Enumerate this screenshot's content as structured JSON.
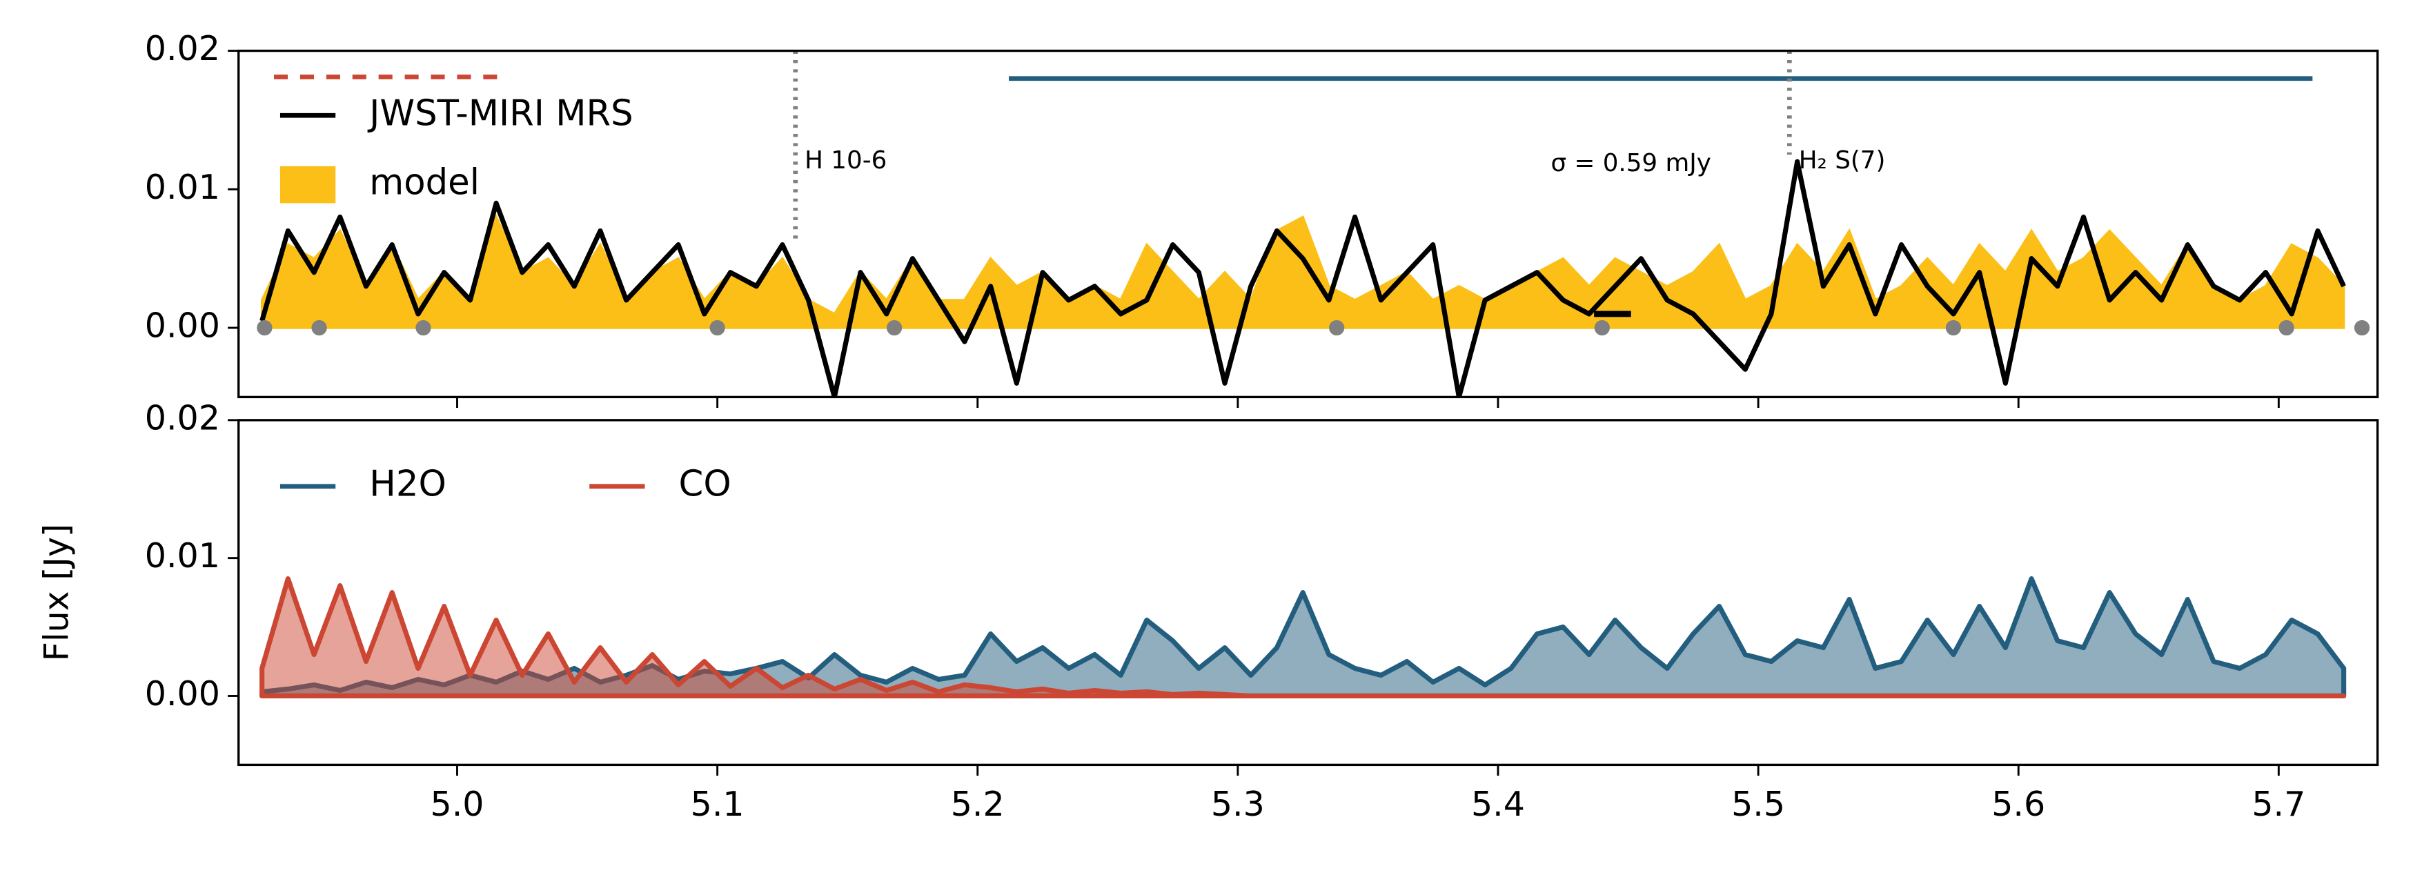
{
  "chart_data": [
    {
      "type": "line",
      "legend": "upper left",
      "x": [
        4.925,
        4.935,
        4.945,
        4.955,
        4.965,
        4.975,
        4.985,
        4.995,
        5.005,
        5.015,
        5.025,
        5.035,
        5.045,
        5.055,
        5.065,
        5.075,
        5.085,
        5.095,
        5.105,
        5.115,
        5.125,
        5.135,
        5.145,
        5.155,
        5.165,
        5.175,
        5.185,
        5.195,
        5.205,
        5.215,
        5.225,
        5.235,
        5.245,
        5.255,
        5.265,
        5.275,
        5.285,
        5.295,
        5.305,
        5.315,
        5.325,
        5.335,
        5.345,
        5.355,
        5.365,
        5.375,
        5.385,
        5.395,
        5.405,
        5.415,
        5.425,
        5.435,
        5.445,
        5.455,
        5.465,
        5.475,
        5.485,
        5.495,
        5.505,
        5.515,
        5.525,
        5.535,
        5.545,
        5.555,
        5.565,
        5.575,
        5.585,
        5.595,
        5.605,
        5.615,
        5.625,
        5.635,
        5.645,
        5.655,
        5.665,
        5.675,
        5.685,
        5.695,
        5.705,
        5.715,
        5.725
      ],
      "series": [
        {
          "name": "model",
          "color": "#fbbf17",
          "fill": true,
          "values": [
            0.002,
            0.006,
            0.005,
            0.007,
            0.003,
            0.006,
            0.002,
            0.004,
            0.002,
            0.008,
            0.004,
            0.005,
            0.003,
            0.006,
            0.002,
            0.004,
            0.005,
            0.002,
            0.004,
            0.003,
            0.005,
            0.002,
            0.001,
            0.004,
            0.002,
            0.005,
            0.002,
            0.002,
            0.005,
            0.003,
            0.004,
            0.002,
            0.003,
            0.002,
            0.006,
            0.004,
            0.002,
            0.004,
            0.002,
            0.007,
            0.008,
            0.003,
            0.002,
            0.003,
            0.004,
            0.002,
            0.003,
            0.002,
            0.003,
            0.004,
            0.005,
            0.003,
            0.005,
            0.004,
            0.003,
            0.004,
            0.006,
            0.002,
            0.003,
            0.006,
            0.004,
            0.007,
            0.002,
            0.003,
            0.005,
            0.003,
            0.006,
            0.004,
            0.007,
            0.004,
            0.005,
            0.007,
            0.005,
            0.003,
            0.006,
            0.003,
            0.002,
            0.003,
            0.006,
            0.005,
            0.003
          ]
        },
        {
          "name": "JWST-MIRI MRS",
          "color": "#000000",
          "fill": false,
          "values": [
            0.0005,
            0.007,
            0.004,
            0.008,
            0.003,
            0.006,
            0.001,
            0.004,
            0.002,
            0.009,
            0.004,
            0.006,
            0.003,
            0.007,
            0.002,
            0.004,
            0.006,
            0.001,
            0.004,
            0.003,
            0.006,
            0.002,
            -0.005,
            0.004,
            0.001,
            0.005,
            0.002,
            -0.001,
            0.003,
            -0.004,
            0.004,
            0.002,
            0.003,
            0.001,
            0.002,
            0.006,
            0.004,
            -0.004,
            0.003,
            0.007,
            0.005,
            0.002,
            0.008,
            0.002,
            0.004,
            0.006,
            -0.005,
            0.002,
            0.003,
            0.004,
            0.002,
            0.001,
            0.003,
            0.005,
            0.002,
            0.001,
            -0.001,
            -0.003,
            0.001,
            0.012,
            0.003,
            0.006,
            0.001,
            0.006,
            0.003,
            0.001,
            0.004,
            -0.004,
            0.005,
            0.003,
            0.008,
            0.002,
            0.004,
            0.002,
            0.006,
            0.003,
            0.002,
            0.004,
            0.001,
            0.007,
            0.003
          ]
        }
      ],
      "continuum": {
        "color": "#808080",
        "x": [
          4.926,
          4.947,
          4.987,
          5.1,
          5.168,
          5.338,
          5.44,
          5.575,
          5.703,
          5.732
        ],
        "values": [
          0,
          0,
          0,
          0,
          0,
          0,
          0,
          0,
          0,
          0
        ]
      },
      "range_line": {
        "color": "#235e7f",
        "x": [
          5.212,
          5.713
        ],
        "value": 0.018
      },
      "lines": [
        {
          "label": "H 10-6",
          "x": 5.13,
          "y_end": 0.006
        },
        {
          "label": "H₂ S(7)",
          "x": 5.512,
          "y_end": 0.0125
        }
      ],
      "noise": {
        "label": "σ = 0.59 mJy",
        "x": 5.444,
        "value": 0.001
      },
      "xlim": [
        4.916,
        5.738
      ],
      "ylim": [
        -0.005,
        0.02
      ],
      "yticks": [
        0.02,
        0.01,
        {
          "value": 0,
          "label": "0.00"
        }
      ]
    },
    {
      "type": "area",
      "legend": "upper left",
      "y_label": "Flux [Jy]",
      "x": [
        4.925,
        4.935,
        4.945,
        4.955,
        4.965,
        4.975,
        4.985,
        4.995,
        5.005,
        5.015,
        5.025,
        5.035,
        5.045,
        5.055,
        5.065,
        5.075,
        5.085,
        5.095,
        5.105,
        5.115,
        5.125,
        5.135,
        5.145,
        5.155,
        5.165,
        5.175,
        5.185,
        5.195,
        5.205,
        5.215,
        5.225,
        5.235,
        5.245,
        5.255,
        5.265,
        5.275,
        5.285,
        5.295,
        5.305,
        5.315,
        5.325,
        5.335,
        5.345,
        5.355,
        5.365,
        5.375,
        5.385,
        5.395,
        5.405,
        5.415,
        5.425,
        5.435,
        5.445,
        5.455,
        5.465,
        5.475,
        5.485,
        5.495,
        5.505,
        5.515,
        5.525,
        5.535,
        5.545,
        5.555,
        5.565,
        5.575,
        5.585,
        5.595,
        5.605,
        5.615,
        5.625,
        5.635,
        5.645,
        5.655,
        5.665,
        5.675,
        5.685,
        5.695,
        5.705,
        5.715,
        5.725
      ],
      "series": [
        {
          "name": "H2O",
          "color": "#235e7f",
          "values": [
            0.0003,
            0.0005,
            0.0008,
            0.0004,
            0.001,
            0.0006,
            0.0012,
            0.0008,
            0.0015,
            0.001,
            0.0018,
            0.0012,
            0.002,
            0.001,
            0.0015,
            0.0022,
            0.0012,
            0.0018,
            0.0016,
            0.002,
            0.0025,
            0.0013,
            0.003,
            0.0015,
            0.001,
            0.002,
            0.0012,
            0.0015,
            0.0045,
            0.0025,
            0.0035,
            0.002,
            0.003,
            0.0015,
            0.0055,
            0.004,
            0.002,
            0.0035,
            0.0015,
            0.0035,
            0.0075,
            0.003,
            0.002,
            0.0015,
            0.0025,
            0.001,
            0.002,
            0.0008,
            0.002,
            0.0045,
            0.005,
            0.003,
            0.0055,
            0.0035,
            0.002,
            0.0045,
            0.0065,
            0.003,
            0.0025,
            0.004,
            0.0035,
            0.007,
            0.002,
            0.0025,
            0.0055,
            0.003,
            0.0065,
            0.0035,
            0.0085,
            0.004,
            0.0035,
            0.0075,
            0.0045,
            0.003,
            0.007,
            0.0025,
            0.002,
            0.003,
            0.0055,
            0.0045,
            0.002
          ]
        },
        {
          "name": "CO",
          "color": "#cc4733",
          "values": [
            0.002,
            0.0085,
            0.003,
            0.008,
            0.0025,
            0.0075,
            0.002,
            0.0065,
            0.0015,
            0.0055,
            0.0015,
            0.0045,
            0.001,
            0.0035,
            0.001,
            0.003,
            0.0008,
            0.0025,
            0.0007,
            0.002,
            0.0006,
            0.0015,
            0.0005,
            0.0012,
            0.0004,
            0.001,
            0.0003,
            0.0008,
            0.0006,
            0.0003,
            0.0005,
            0.0002,
            0.0004,
            0.0002,
            0.0003,
            0.0001,
            0.0002,
            0.0001,
            0,
            0,
            0,
            0,
            0,
            0,
            0,
            0,
            0,
            0,
            0,
            0,
            0,
            0,
            0,
            0,
            0,
            0,
            0,
            0,
            0,
            0,
            0,
            0,
            0,
            0,
            0,
            0,
            0,
            0,
            0,
            0,
            0,
            0,
            0,
            0,
            0,
            0,
            0,
            0,
            0,
            0,
            0
          ]
        }
      ],
      "xlim": [
        4.916,
        5.738
      ],
      "ylim": [
        -0.005,
        0.02
      ],
      "yticks": [
        0.02,
        0.01,
        {
          "value": 0,
          "label": "0.00"
        }
      ],
      "xticks": [
        {
          "value": 5,
          "label": "5.0"
        },
        5.1,
        5.2,
        5.3,
        5.4,
        5.5,
        5.6,
        5.7
      ]
    }
  ]
}
